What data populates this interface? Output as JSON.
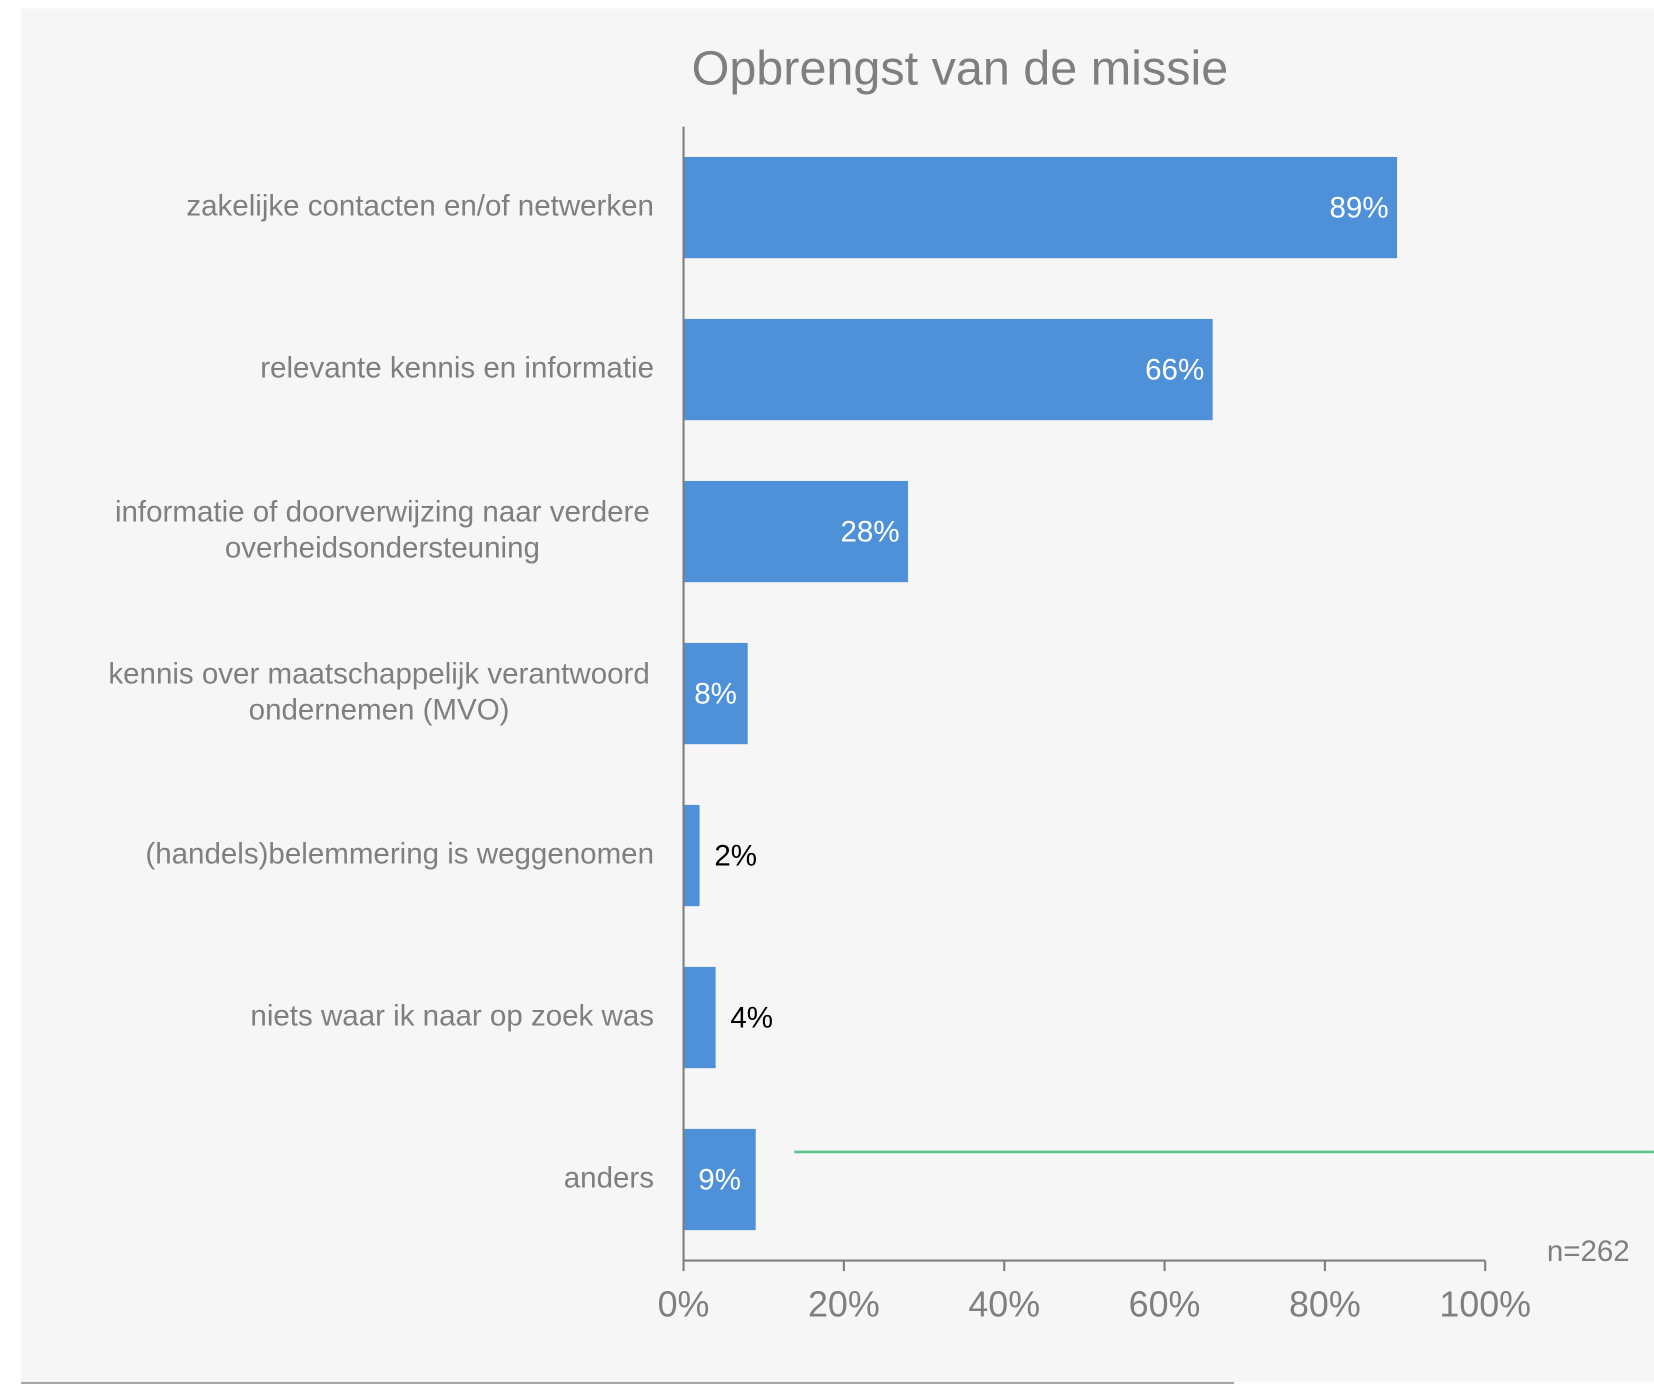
{
  "chart_data": {
    "type": "bar",
    "orientation": "horizontal",
    "title": "Opbrengst van de missie",
    "categories": [
      "zakelijke contacten en/of netwerken",
      "relevante kennis en informatie",
      "informatie of doorverwijzing naar verdere overheidsondersteuning",
      "kennis over maatschappelijk verantwoord ondernemen (MVO)",
      "(handels)belemmering is weggenomen",
      "niets waar ik naar op zoek was",
      "anders"
    ],
    "values": [
      89,
      66,
      28,
      8,
      2,
      4,
      9
    ],
    "value_labels": [
      "89%",
      "66%",
      "28%",
      "8%",
      "2%",
      "4%",
      "9%"
    ],
    "color": "#4e91d8",
    "xlim": [
      0,
      100
    ],
    "xticks": [
      {
        "value": 0,
        "label": "0%"
      },
      {
        "value": 20,
        "label": "20%"
      },
      {
        "value": 40,
        "label": "40%"
      },
      {
        "value": 60,
        "label": "60%"
      },
      {
        "value": 80,
        "label": "80%"
      },
      {
        "value": 100,
        "label": "100%"
      }
    ],
    "annotation": "n=262"
  }
}
